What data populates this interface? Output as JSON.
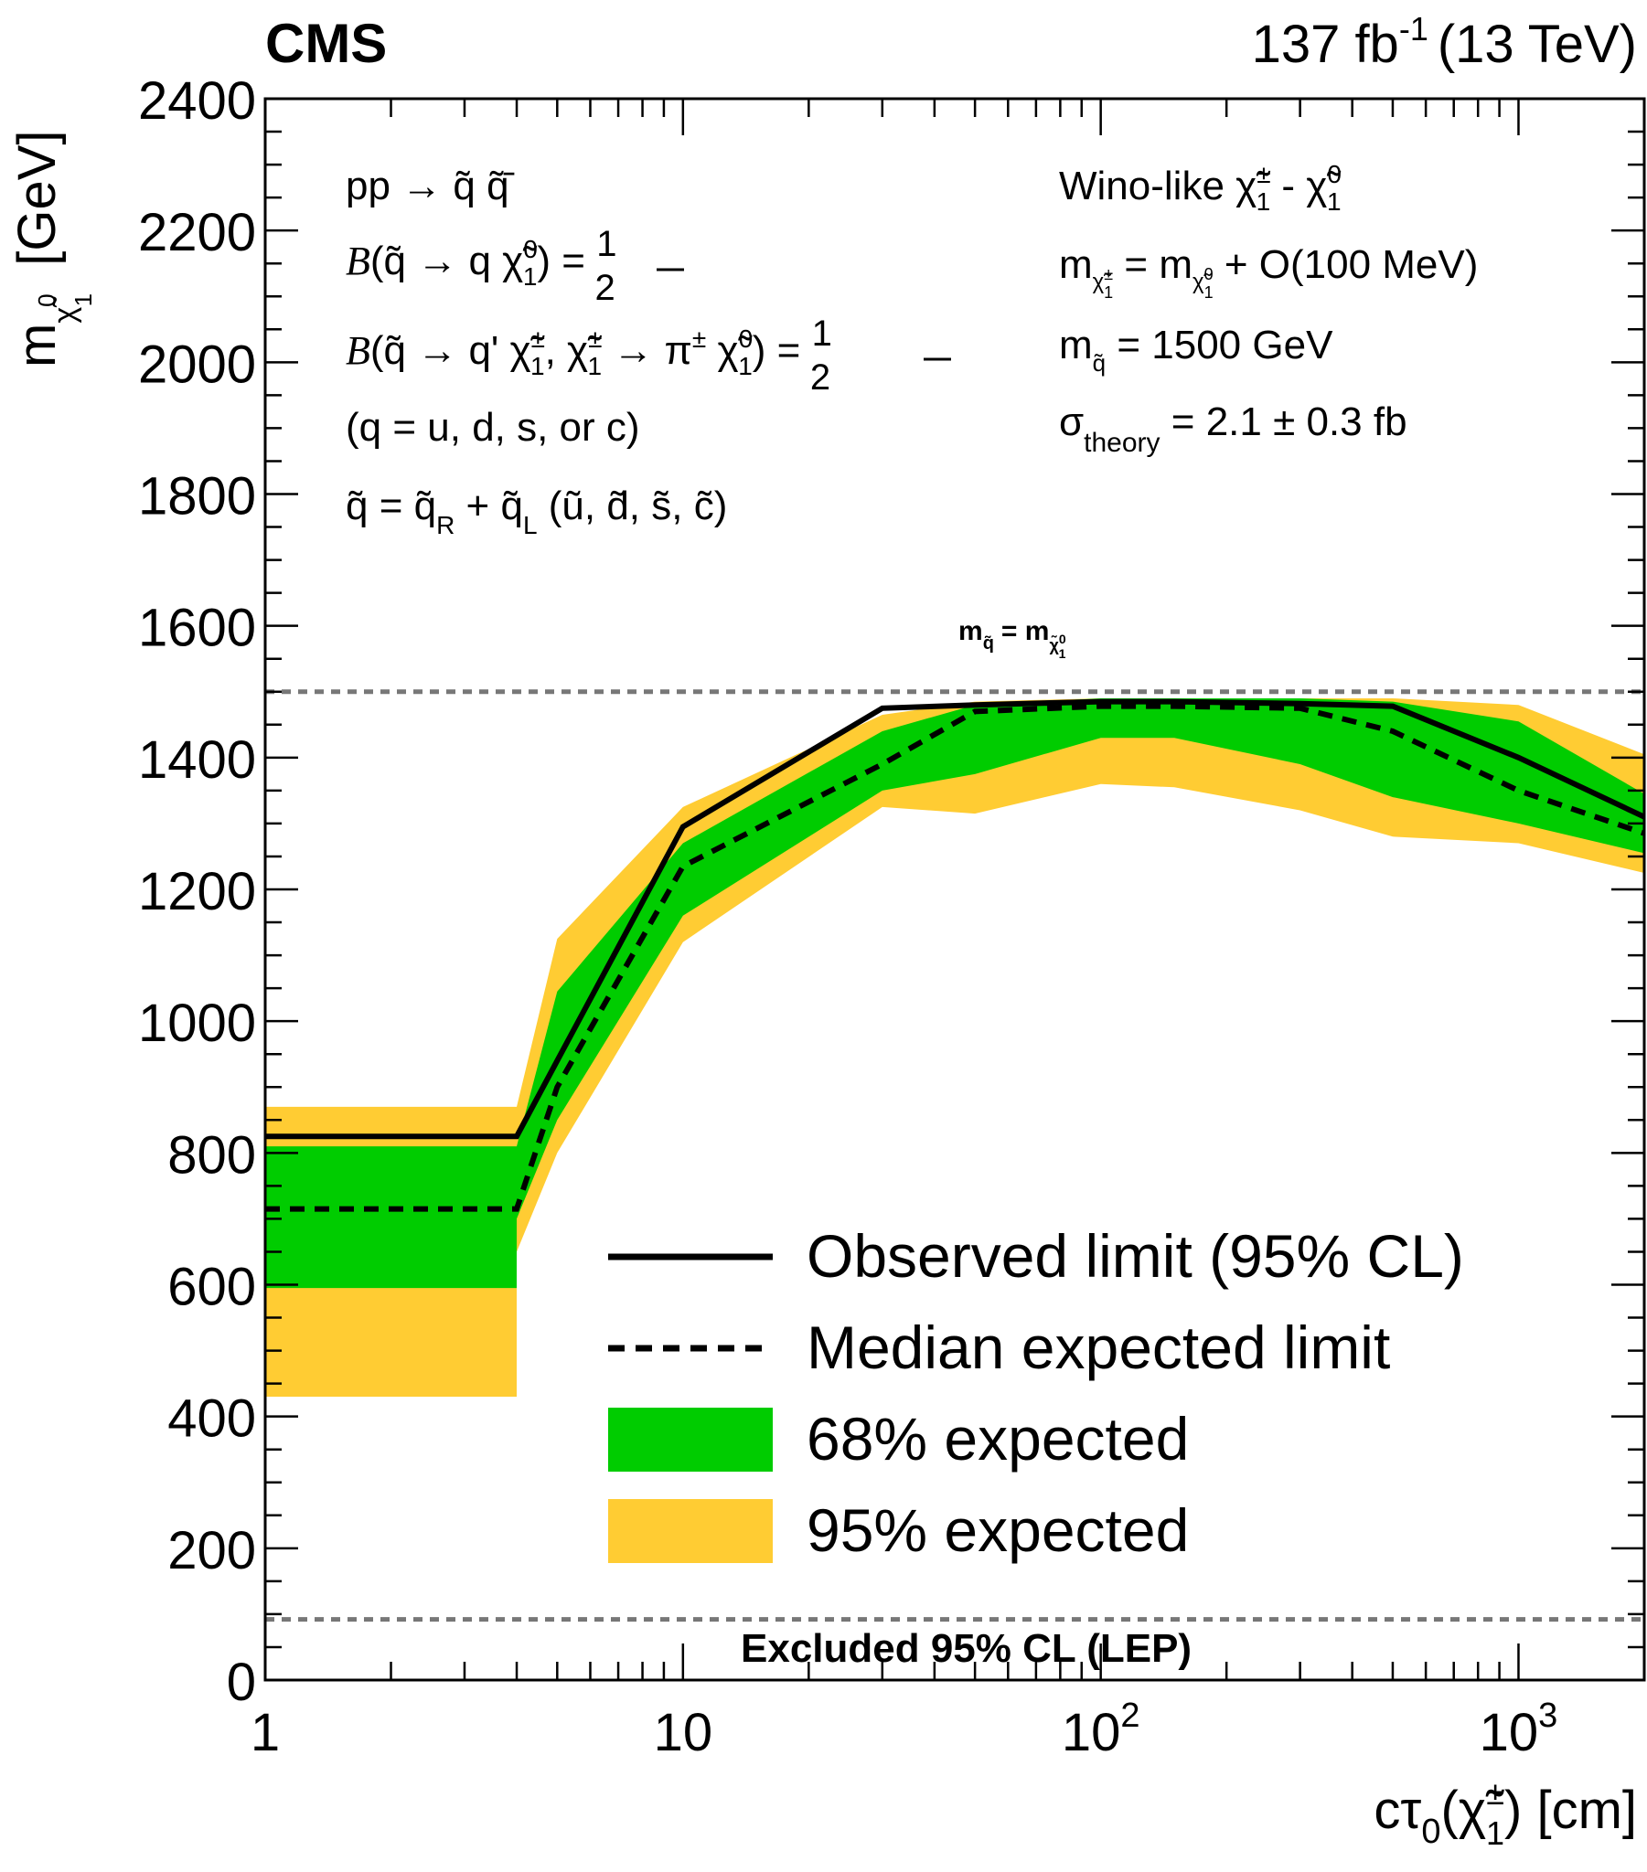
{
  "header": {
    "experiment": "CMS",
    "luminosity": "137 fb",
    "luminosity_exp": "-1",
    "energy": "(13 TeV)"
  },
  "chart_data": {
    "type": "area",
    "x_scale": "log",
    "xlim": [
      1,
      2000
    ],
    "ylim": [
      0,
      2400
    ],
    "xlabel_main": "cτ",
    "xlabel_rest": "[cm]",
    "ylabel_main": "m",
    "ylabel_unit": "[GeV]",
    "x_ticks": [
      {
        "value": 1,
        "base": "1",
        "exp": ""
      },
      {
        "value": 10,
        "base": "10",
        "exp": ""
      },
      {
        "value": 100,
        "base": "10",
        "exp": "2"
      },
      {
        "value": 1000,
        "base": "10",
        "exp": "3"
      }
    ],
    "y_ticks": [
      0,
      200,
      400,
      600,
      800,
      1000,
      1200,
      1400,
      1600,
      1800,
      2000,
      2200,
      2400
    ],
    "band_95": {
      "x": [
        1,
        4,
        4,
        5,
        10,
        30,
        50,
        100,
        150,
        300,
        500,
        1000,
        2000
      ],
      "lo": [
        430,
        430,
        650,
        800,
        1120,
        1325,
        1315,
        1360,
        1355,
        1320,
        1280,
        1270,
        1225
      ],
      "hi": [
        870,
        870,
        870,
        1125,
        1325,
        1465,
        1485,
        1490,
        1490,
        1490,
        1490,
        1480,
        1405
      ]
    },
    "band_68": {
      "x": [
        1,
        4,
        4,
        5,
        10,
        30,
        50,
        100,
        150,
        300,
        500,
        1000,
        2000
      ],
      "lo": [
        595,
        595,
        700,
        850,
        1160,
        1350,
        1375,
        1430,
        1430,
        1390,
        1340,
        1300,
        1255
      ],
      "hi": [
        810,
        810,
        810,
        1045,
        1270,
        1440,
        1480,
        1490,
        1490,
        1490,
        1485,
        1455,
        1345
      ]
    },
    "observed": {
      "x": [
        1,
        4,
        5,
        10,
        30,
        50,
        100,
        150,
        300,
        500,
        1000,
        2000
      ],
      "y": [
        825,
        825,
        940,
        1295,
        1475,
        1480,
        1485,
        1485,
        1482,
        1478,
        1400,
        1310
      ]
    },
    "expected": {
      "x": [
        1,
        4,
        5,
        10,
        30,
        50,
        100,
        150,
        300,
        500,
        1000,
        2000
      ],
      "y": [
        715,
        715,
        900,
        1235,
        1390,
        1470,
        1478,
        1478,
        1475,
        1440,
        1350,
        1285
      ]
    },
    "hlines": [
      {
        "y": 1500,
        "label": "m = m"
      },
      {
        "y": 92,
        "label": "Excluded 95% CL (LEP)"
      }
    ],
    "colors": {
      "observed": "#000000",
      "expected": "#000000",
      "band_68": "#00cc00",
      "band_95": "#ffcc33",
      "reference_line": "#777777"
    },
    "legend": {
      "position": "bottom-right",
      "entries": [
        {
          "label": "Observed limit (95% CL)",
          "style": "solid-line"
        },
        {
          "label": "Median expected limit",
          "style": "dashed-line"
        },
        {
          "label": "68% expected",
          "style": "green-box"
        },
        {
          "label": "95% expected",
          "style": "yellow-box"
        }
      ]
    }
  },
  "annotations": {
    "left_lines": [
      "pp → q̃ q̃̄",
      "B(q̃ → q χ̃₁⁰) = ½",
      "B(q̃ → q' χ̃₁±, χ̃₁± → π± χ̃₁⁰) = ½",
      "(q = u, d, s, or c)",
      "q̃ = q̃R + q̃L (ũ, d̃, s̃, c̃)"
    ],
    "right_lines": [
      "Wino-like χ̃₁± - χ̃₁⁰",
      "m(χ̃₁±) = m(χ̃₁⁰) + O(100 MeV)",
      "m(q̃) = 1500 GeV",
      "σtheory = 2.1 ± 0.3 fb"
    ]
  }
}
